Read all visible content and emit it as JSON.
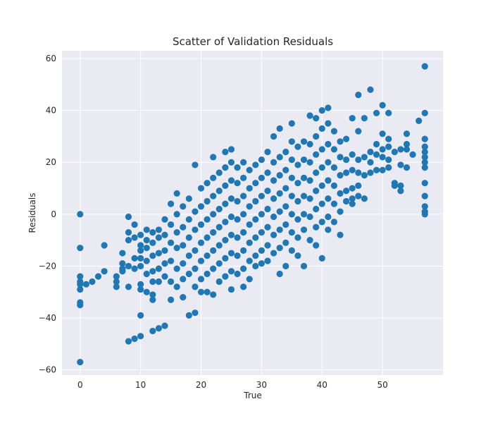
{
  "chart_data": {
    "type": "scatter",
    "title": "Scatter of Validation Residuals",
    "xlabel": "True",
    "ylabel": "Residuals",
    "xlim": [
      -3,
      60
    ],
    "ylim": [
      -62,
      63
    ],
    "x_ticks": [
      0,
      10,
      20,
      30,
      40,
      50
    ],
    "y_ticks": [
      -60,
      -40,
      -20,
      0,
      20,
      40,
      60
    ],
    "grid": true,
    "point_color": "#1f77b4",
    "background_color": "#eaeaf2",
    "series": [
      {
        "points": [
          [
            0,
            0
          ],
          [
            0,
            -13
          ],
          [
            0,
            -24
          ],
          [
            0,
            -26
          ],
          [
            0,
            -27
          ],
          [
            0,
            -29
          ],
          [
            0,
            -34
          ],
          [
            0,
            -35
          ],
          [
            0,
            -57
          ],
          [
            1,
            -27
          ],
          [
            2,
            -26
          ],
          [
            3,
            -24
          ],
          [
            4,
            -12
          ],
          [
            4,
            -22
          ],
          [
            6,
            -24
          ],
          [
            6,
            -26
          ],
          [
            6,
            -28
          ],
          [
            7,
            -15
          ],
          [
            7,
            -19
          ],
          [
            7,
            -21
          ],
          [
            7,
            -22
          ],
          [
            8,
            -1
          ],
          [
            8,
            -7
          ],
          [
            8,
            -10
          ],
          [
            8,
            -20
          ],
          [
            8,
            -28
          ],
          [
            8,
            -49
          ],
          [
            9,
            -4
          ],
          [
            9,
            -9
          ],
          [
            9,
            -17
          ],
          [
            9,
            -21
          ],
          [
            9,
            -48
          ],
          [
            10,
            -8
          ],
          [
            10,
            -12
          ],
          [
            10,
            -14
          ],
          [
            10,
            -17
          ],
          [
            10,
            -20
          ],
          [
            10,
            -27
          ],
          [
            10,
            -29
          ],
          [
            10,
            -39
          ],
          [
            10,
            -47
          ],
          [
            11,
            -6
          ],
          [
            11,
            -10
          ],
          [
            11,
            -13
          ],
          [
            11,
            -18
          ],
          [
            11,
            -23
          ],
          [
            11,
            -30
          ],
          [
            12,
            -7
          ],
          [
            12,
            -11
          ],
          [
            12,
            -16
          ],
          [
            12,
            -22
          ],
          [
            12,
            -26
          ],
          [
            12,
            -31
          ],
          [
            12,
            -33
          ],
          [
            12,
            -45
          ],
          [
            13,
            -6
          ],
          [
            13,
            -9
          ],
          [
            13,
            -15
          ],
          [
            13,
            -21
          ],
          [
            13,
            -26
          ],
          [
            13,
            -44
          ],
          [
            14,
            -2
          ],
          [
            14,
            -8
          ],
          [
            14,
            -14
          ],
          [
            14,
            -19
          ],
          [
            14,
            -24
          ],
          [
            14,
            -43
          ],
          [
            15,
            4
          ],
          [
            15,
            -4
          ],
          [
            15,
            -11
          ],
          [
            15,
            -18
          ],
          [
            15,
            -26
          ],
          [
            15,
            -33
          ],
          [
            16,
            8
          ],
          [
            16,
            0
          ],
          [
            16,
            -7
          ],
          [
            16,
            -13
          ],
          [
            16,
            -21
          ],
          [
            16,
            -28
          ],
          [
            17,
            3
          ],
          [
            17,
            -5
          ],
          [
            17,
            -12
          ],
          [
            17,
            -19
          ],
          [
            17,
            -25
          ],
          [
            17,
            -32
          ],
          [
            18,
            6
          ],
          [
            18,
            -2
          ],
          [
            18,
            -9
          ],
          [
            18,
            -16
          ],
          [
            18,
            -23
          ],
          [
            18,
            -39
          ],
          [
            19,
            19
          ],
          [
            19,
            1
          ],
          [
            19,
            -6
          ],
          [
            19,
            -14
          ],
          [
            19,
            -21
          ],
          [
            19,
            -28
          ],
          [
            19,
            -38
          ],
          [
            20,
            10
          ],
          [
            20,
            3
          ],
          [
            20,
            -4
          ],
          [
            20,
            -11
          ],
          [
            20,
            -18
          ],
          [
            20,
            -25
          ],
          [
            20,
            -30
          ],
          [
            21,
            12
          ],
          [
            21,
            5
          ],
          [
            21,
            -2
          ],
          [
            21,
            -9
          ],
          [
            21,
            -16
          ],
          [
            21,
            -23
          ],
          [
            21,
            -30
          ],
          [
            22,
            22
          ],
          [
            22,
            14
          ],
          [
            22,
            7
          ],
          [
            22,
            0
          ],
          [
            22,
            -7
          ],
          [
            22,
            -14
          ],
          [
            22,
            -21
          ],
          [
            22,
            -31
          ],
          [
            23,
            16
          ],
          [
            23,
            9
          ],
          [
            23,
            2
          ],
          [
            23,
            -5
          ],
          [
            23,
            -12
          ],
          [
            23,
            -19
          ],
          [
            23,
            -26
          ],
          [
            24,
            24
          ],
          [
            24,
            18
          ],
          [
            24,
            11
          ],
          [
            24,
            4
          ],
          [
            24,
            -3
          ],
          [
            24,
            -10
          ],
          [
            24,
            -17
          ],
          [
            24,
            -24
          ],
          [
            25,
            25
          ],
          [
            25,
            20
          ],
          [
            25,
            13
          ],
          [
            25,
            6
          ],
          [
            25,
            -1
          ],
          [
            25,
            -8
          ],
          [
            25,
            -15
          ],
          [
            25,
            -22
          ],
          [
            25,
            -29
          ],
          [
            26,
            18
          ],
          [
            26,
            12
          ],
          [
            26,
            5
          ],
          [
            26,
            -2
          ],
          [
            26,
            -9
          ],
          [
            26,
            -16
          ],
          [
            26,
            -23
          ],
          [
            27,
            20
          ],
          [
            27,
            14
          ],
          [
            27,
            7
          ],
          [
            27,
            0
          ],
          [
            27,
            -7
          ],
          [
            27,
            -14
          ],
          [
            27,
            -21
          ],
          [
            27,
            -28
          ],
          [
            28,
            17
          ],
          [
            28,
            10
          ],
          [
            28,
            3
          ],
          [
            28,
            -4
          ],
          [
            28,
            -11
          ],
          [
            28,
            -18
          ],
          [
            28,
            -25
          ],
          [
            29,
            19
          ],
          [
            29,
            12
          ],
          [
            29,
            5
          ],
          [
            29,
            -2
          ],
          [
            29,
            -9
          ],
          [
            29,
            -16
          ],
          [
            29,
            -20
          ],
          [
            30,
            21
          ],
          [
            30,
            14
          ],
          [
            30,
            7
          ],
          [
            30,
            0
          ],
          [
            30,
            -7
          ],
          [
            30,
            -14
          ],
          [
            30,
            -19
          ],
          [
            31,
            24
          ],
          [
            31,
            16
          ],
          [
            31,
            9
          ],
          [
            31,
            2
          ],
          [
            31,
            -5
          ],
          [
            31,
            -12
          ],
          [
            31,
            -18
          ],
          [
            32,
            30
          ],
          [
            32,
            20
          ],
          [
            32,
            13
          ],
          [
            32,
            6
          ],
          [
            32,
            -1
          ],
          [
            32,
            -8
          ],
          [
            32,
            -15
          ],
          [
            33,
            33
          ],
          [
            33,
            22
          ],
          [
            33,
            15
          ],
          [
            33,
            8
          ],
          [
            33,
            1
          ],
          [
            33,
            -6
          ],
          [
            33,
            -13
          ],
          [
            33,
            -23
          ],
          [
            34,
            24
          ],
          [
            34,
            17
          ],
          [
            34,
            10
          ],
          [
            34,
            3
          ],
          [
            34,
            -4
          ],
          [
            34,
            -11
          ],
          [
            34,
            -20
          ],
          [
            35,
            35
          ],
          [
            35,
            28
          ],
          [
            35,
            21
          ],
          [
            35,
            14
          ],
          [
            35,
            7
          ],
          [
            35,
            0
          ],
          [
            35,
            -7
          ],
          [
            35,
            -14
          ],
          [
            36,
            26
          ],
          [
            36,
            19
          ],
          [
            36,
            12
          ],
          [
            36,
            5
          ],
          [
            36,
            -2
          ],
          [
            36,
            -9
          ],
          [
            36,
            -16
          ],
          [
            37,
            28
          ],
          [
            37,
            21
          ],
          [
            37,
            14
          ],
          [
            37,
            7
          ],
          [
            37,
            0
          ],
          [
            37,
            -6
          ],
          [
            37,
            -20
          ],
          [
            38,
            38
          ],
          [
            38,
            27
          ],
          [
            38,
            20
          ],
          [
            38,
            13
          ],
          [
            38,
            6
          ],
          [
            38,
            -1
          ],
          [
            38,
            -10
          ],
          [
            39,
            37
          ],
          [
            39,
            30
          ],
          [
            39,
            23
          ],
          [
            39,
            16
          ],
          [
            39,
            9
          ],
          [
            39,
            2
          ],
          [
            39,
            -5
          ],
          [
            39,
            -12
          ],
          [
            40,
            40
          ],
          [
            40,
            33
          ],
          [
            40,
            25
          ],
          [
            40,
            18
          ],
          [
            40,
            11
          ],
          [
            40,
            4
          ],
          [
            40,
            -3
          ],
          [
            40,
            -17
          ],
          [
            41,
            41
          ],
          [
            41,
            35
          ],
          [
            41,
            27
          ],
          [
            41,
            20
          ],
          [
            41,
            13
          ],
          [
            41,
            6
          ],
          [
            41,
            -1
          ],
          [
            41,
            -6
          ],
          [
            42,
            32
          ],
          [
            42,
            25
          ],
          [
            42,
            18
          ],
          [
            42,
            11
          ],
          [
            42,
            4
          ],
          [
            42,
            -3
          ],
          [
            43,
            28
          ],
          [
            43,
            22
          ],
          [
            43,
            15
          ],
          [
            43,
            8
          ],
          [
            43,
            1
          ],
          [
            43,
            -8
          ],
          [
            44,
            29
          ],
          [
            44,
            21
          ],
          [
            44,
            16
          ],
          [
            44,
            9
          ],
          [
            44,
            5
          ],
          [
            45,
            37
          ],
          [
            45,
            23
          ],
          [
            45,
            17
          ],
          [
            45,
            10
          ],
          [
            45,
            6
          ],
          [
            45,
            4
          ],
          [
            46,
            46
          ],
          [
            46,
            32
          ],
          [
            46,
            21
          ],
          [
            46,
            16
          ],
          [
            46,
            11
          ],
          [
            46,
            7
          ],
          [
            47,
            37
          ],
          [
            47,
            22
          ],
          [
            47,
            15
          ],
          [
            47,
            6
          ],
          [
            48,
            48
          ],
          [
            48,
            24
          ],
          [
            48,
            20
          ],
          [
            48,
            16
          ],
          [
            49,
            39
          ],
          [
            49,
            27
          ],
          [
            49,
            23
          ],
          [
            49,
            17
          ],
          [
            50,
            42
          ],
          [
            50,
            31
          ],
          [
            50,
            25
          ],
          [
            50,
            22
          ],
          [
            50,
            17
          ],
          [
            51,
            39
          ],
          [
            51,
            29
          ],
          [
            51,
            26
          ],
          [
            51,
            21
          ],
          [
            51,
            18
          ],
          [
            52,
            24
          ],
          [
            52,
            12
          ],
          [
            52,
            11
          ],
          [
            53,
            25
          ],
          [
            53,
            19
          ],
          [
            53,
            11
          ],
          [
            53,
            9
          ],
          [
            54,
            31
          ],
          [
            54,
            27
          ],
          [
            54,
            25
          ],
          [
            54,
            18
          ],
          [
            55,
            23
          ],
          [
            56,
            36
          ],
          [
            57,
            57
          ],
          [
            57,
            39
          ],
          [
            57,
            29
          ],
          [
            57,
            26
          ],
          [
            57,
            24
          ],
          [
            57,
            22
          ],
          [
            57,
            20
          ],
          [
            57,
            18
          ],
          [
            57,
            12
          ],
          [
            57,
            7
          ],
          [
            57,
            3
          ],
          [
            57,
            1
          ],
          [
            57,
            0
          ]
        ]
      }
    ]
  }
}
